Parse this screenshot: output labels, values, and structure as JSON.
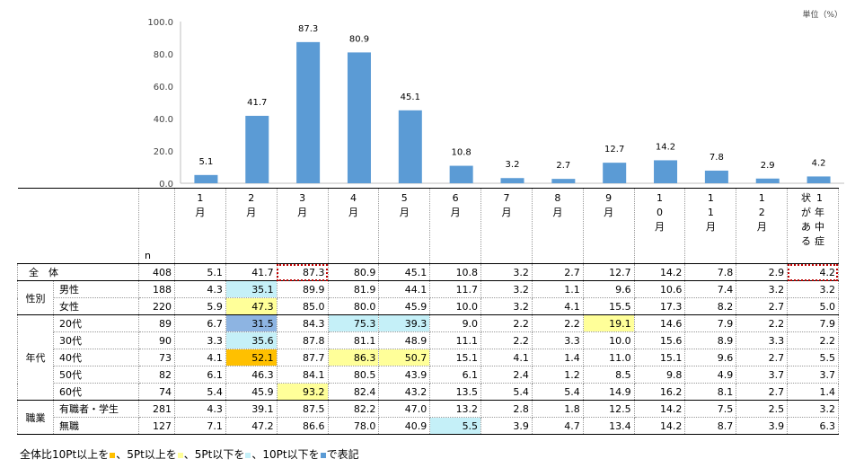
{
  "chart_data": {
    "type": "bar",
    "unit_label": "単位（%）",
    "yticks": [
      "100.0",
      "80.0",
      "60.0",
      "40.0",
      "20.0",
      "0.0"
    ],
    "ylim": [
      0,
      100
    ],
    "categories": [
      "1月",
      "2月",
      "3月",
      "4月",
      "5月",
      "6月",
      "7月",
      "8月",
      "9月",
      "10月",
      "11月",
      "12月",
      "1年中症状がある"
    ],
    "values": [
      5.1,
      41.7,
      87.3,
      80.9,
      45.1,
      10.8,
      3.2,
      2.7,
      12.7,
      14.2,
      7.8,
      2.9,
      4.2
    ],
    "value_labels": [
      "5.1",
      "41.7",
      "87.3",
      "80.9",
      "45.1",
      "10.8",
      "3.2",
      "2.7",
      "12.7",
      "14.2",
      "7.8",
      "2.9",
      "4.2"
    ],
    "bar_color": "#5b9bd5"
  },
  "table": {
    "header_columns": [
      [
        "1",
        "月"
      ],
      [
        "2",
        "月"
      ],
      [
        "3",
        "月"
      ],
      [
        "4",
        "月"
      ],
      [
        "5",
        "月"
      ],
      [
        "6",
        "月"
      ],
      [
        "7",
        "月"
      ],
      [
        "8",
        "月"
      ],
      [
        "9",
        "月"
      ],
      [
        "1",
        "0",
        "月"
      ],
      [
        "1",
        "1",
        "月"
      ],
      [
        "1",
        "2",
        "月"
      ],
      [
        "1",
        "年",
        "中",
        "症",
        "状",
        "が",
        "あ",
        "る"
      ]
    ],
    "n_label": "n",
    "rows": [
      {
        "group": "全　体",
        "label": "",
        "n": "408",
        "values": [
          "5.1",
          "41.7",
          "87.3",
          "80.9",
          "45.1",
          "10.8",
          "3.2",
          "2.7",
          "12.7",
          "14.2",
          "7.8",
          "2.9",
          "4.2"
        ],
        "hl": [
          "",
          "",
          "",
          "",
          "",
          "",
          "",
          "",
          "",
          "",
          "",
          "",
          ""
        ],
        "total": true
      },
      {
        "group": "性別",
        "label": "男性",
        "n": "188",
        "values": [
          "4.3",
          "35.1",
          "89.9",
          "81.9",
          "44.1",
          "11.7",
          "3.2",
          "1.1",
          "9.6",
          "10.6",
          "7.4",
          "3.2",
          "3.2"
        ],
        "hl": [
          "",
          "lb",
          "",
          "",
          "",
          "",
          "",
          "",
          "",
          "",
          "",
          "",
          ""
        ]
      },
      {
        "group": "",
        "label": "女性",
        "n": "220",
        "values": [
          "5.9",
          "47.3",
          "85.0",
          "80.0",
          "45.9",
          "10.0",
          "3.2",
          "4.1",
          "15.5",
          "17.3",
          "8.2",
          "2.7",
          "5.0"
        ],
        "hl": [
          "",
          "y",
          "",
          "",
          "",
          "",
          "",
          "",
          "",
          "",
          "",
          "",
          ""
        ]
      },
      {
        "group": "年代",
        "label": "20代",
        "n": "89",
        "values": [
          "6.7",
          "31.5",
          "84.3",
          "75.3",
          "39.3",
          "9.0",
          "2.2",
          "2.2",
          "19.1",
          "14.6",
          "7.9",
          "2.2",
          "7.9"
        ],
        "hl": [
          "",
          "b",
          "",
          "lb",
          "lb",
          "",
          "",
          "",
          "y",
          "",
          "",
          "",
          ""
        ]
      },
      {
        "group": "",
        "label": "30代",
        "n": "90",
        "values": [
          "3.3",
          "35.6",
          "87.8",
          "81.1",
          "48.9",
          "11.1",
          "2.2",
          "3.3",
          "10.0",
          "15.6",
          "8.9",
          "3.3",
          "2.2"
        ],
        "hl": [
          "",
          "lb",
          "",
          "",
          "",
          "",
          "",
          "",
          "",
          "",
          "",
          "",
          ""
        ]
      },
      {
        "group": "",
        "label": "40代",
        "n": "73",
        "values": [
          "4.1",
          "52.1",
          "87.7",
          "86.3",
          "50.7",
          "15.1",
          "4.1",
          "1.4",
          "11.0",
          "15.1",
          "9.6",
          "2.7",
          "5.5"
        ],
        "hl": [
          "",
          "o",
          "",
          "y",
          "y",
          "",
          "",
          "",
          "",
          "",
          "",
          "",
          ""
        ]
      },
      {
        "group": "",
        "label": "50代",
        "n": "82",
        "values": [
          "6.1",
          "46.3",
          "84.1",
          "80.5",
          "43.9",
          "6.1",
          "2.4",
          "1.2",
          "8.5",
          "9.8",
          "4.9",
          "3.7",
          "3.7"
        ],
        "hl": [
          "",
          "",
          "",
          "",
          "",
          "",
          "",
          "",
          "",
          "",
          "",
          "",
          ""
        ]
      },
      {
        "group": "",
        "label": "60代",
        "n": "74",
        "values": [
          "5.4",
          "45.9",
          "93.2",
          "82.4",
          "43.2",
          "13.5",
          "5.4",
          "5.4",
          "14.9",
          "16.2",
          "8.1",
          "2.7",
          "1.4"
        ],
        "hl": [
          "",
          "",
          "y",
          "",
          "",
          "",
          "",
          "",
          "",
          "",
          "",
          "",
          ""
        ]
      },
      {
        "group": "職業",
        "label": "有職者・学生",
        "n": "281",
        "values": [
          "4.3",
          "39.1",
          "87.5",
          "82.2",
          "47.0",
          "13.2",
          "2.8",
          "1.8",
          "12.5",
          "14.2",
          "7.5",
          "2.5",
          "3.2"
        ],
        "hl": [
          "",
          "",
          "",
          "",
          "",
          "",
          "",
          "",
          "",
          "",
          "",
          "",
          ""
        ]
      },
      {
        "group": "",
        "label": "無職",
        "n": "127",
        "values": [
          "7.1",
          "47.2",
          "86.6",
          "78.0",
          "40.9",
          "5.5",
          "3.9",
          "4.7",
          "13.4",
          "14.2",
          "8.7",
          "3.9",
          "6.3"
        ],
        "hl": [
          "",
          "",
          "",
          "",
          "",
          "lb",
          "",
          "",
          "",
          "",
          "",
          "",
          ""
        ]
      }
    ],
    "highlight_colors": {
      "o": "#ffc000",
      "y": "#ffff99",
      "lb": "#c5f0f8",
      "b": "#8db4e2"
    }
  },
  "note": {
    "parts": [
      "全体比10Pt以上を",
      "、5Pt以上を",
      "、5Pt以下を",
      "、10Pt以下を",
      "で表記"
    ],
    "colors": [
      "#ffc000",
      "#ffff99",
      "#c5f0f8",
      "#5b9bd5"
    ]
  }
}
